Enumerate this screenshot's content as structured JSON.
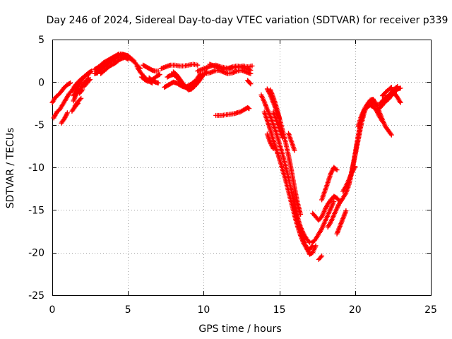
{
  "chart_data": {
    "type": "scatter",
    "title": "Day 246 of 2024, Sidereal Day-to-day VTEC variation (SDTVAR) for receiver p339",
    "xlabel": "GPS time / hours",
    "ylabel": "SDTVAR / TECUs",
    "xlim": [
      0,
      25
    ],
    "ylim": [
      -25,
      5
    ],
    "xticks": [
      "0",
      "5",
      "10",
      "15",
      "20",
      "25"
    ],
    "yticks": [
      "5",
      "0",
      "-5",
      "-10",
      "-15",
      "-20",
      "-25"
    ],
    "grid": true,
    "marker": "+",
    "series": [
      {
        "name": "arc-01",
        "color": "#ff0000",
        "x": [
          0.0,
          0.2,
          0.4,
          0.6,
          0.8,
          1.0,
          1.2
        ],
        "y": [
          -2.4,
          -1.8,
          -1.5,
          -1.1,
          -0.6,
          -0.3,
          -0.1
        ]
      },
      {
        "name": "arc-02",
        "color": "#ff0000",
        "x": [
          0.1,
          0.3,
          0.5,
          0.7,
          0.9,
          1.1,
          1.3,
          1.5,
          1.7,
          2.0,
          2.3,
          2.5
        ],
        "y": [
          -4.2,
          -3.5,
          -3.2,
          -2.6,
          -2.0,
          -1.4,
          -1.0,
          -0.4,
          0.0,
          0.5,
          0.9,
          1.1
        ]
      },
      {
        "name": "arc-03",
        "color": "#ff0000",
        "x": [
          0.6,
          0.8,
          1.0
        ],
        "y": [
          -4.8,
          -4.3,
          -3.6
        ]
      },
      {
        "name": "arc-04",
        "color": "#ff0000",
        "x": [
          1.4,
          1.6,
          1.8,
          2.0,
          2.2,
          2.4,
          2.6
        ],
        "y": [
          -1.6,
          -0.8,
          -0.2,
          0.4,
          0.8,
          1.1,
          1.3
        ]
      },
      {
        "name": "arc-05",
        "color": "#ff0000",
        "x": [
          1.4,
          1.6,
          1.8,
          2.0,
          2.2,
          2.4
        ],
        "y": [
          -2.2,
          -1.4,
          -0.9,
          -0.4,
          0.1,
          0.5
        ]
      },
      {
        "name": "arc-06",
        "color": "#ff0000",
        "x": [
          1.3,
          1.5,
          1.7
        ],
        "y": [
          -3.4,
          -2.9,
          -2.5
        ]
      },
      {
        "name": "arc-07",
        "color": "#ff0000",
        "x": [
          1.5,
          1.7,
          1.9
        ],
        "y": [
          -2.8,
          -2.3,
          -1.9
        ]
      },
      {
        "name": "arc-08",
        "color": "#ff0000",
        "x": [
          1.8,
          2.0
        ],
        "y": [
          -1.3,
          -0.9
        ]
      },
      {
        "name": "arc-09",
        "color": "#ff0000",
        "x": [
          2.1,
          2.3,
          2.5
        ],
        "y": [
          -0.5,
          -0.1,
          0.3
        ]
      },
      {
        "name": "arc-10",
        "color": "#ff0000",
        "x": [
          2.8,
          3.0,
          3.2,
          3.4,
          3.6,
          3.8,
          4.0,
          4.2,
          4.4,
          4.6,
          4.8,
          5.0,
          5.2,
          5.4,
          5.6,
          5.8
        ],
        "y": [
          1.0,
          1.1,
          1.5,
          2.0,
          2.3,
          2.6,
          2.8,
          3.0,
          3.1,
          3.2,
          3.1,
          2.9,
          2.7,
          2.4,
          2.0,
          1.6
        ]
      },
      {
        "name": "arc-11",
        "color": "#ff0000",
        "x": [
          2.8,
          3.0,
          3.2,
          3.4,
          3.6,
          3.8,
          4.0,
          4.2,
          4.4,
          4.6,
          4.8,
          5.0,
          5.2,
          5.4
        ],
        "y": [
          1.5,
          1.7,
          2.0,
          2.3,
          2.5,
          2.7,
          2.9,
          3.1,
          3.3,
          3.3,
          3.2,
          3.1,
          2.8,
          2.5
        ]
      },
      {
        "name": "arc-12",
        "color": "#ff0000",
        "x": [
          3.0,
          3.2,
          3.4,
          3.6,
          3.8,
          4.0,
          4.2
        ],
        "y": [
          1.3,
          1.5,
          1.8,
          2.1,
          2.4,
          2.6,
          2.8
        ]
      },
      {
        "name": "arc-13",
        "color": "#ff0000",
        "x": [
          3.2,
          3.4,
          3.6,
          3.8,
          4.0,
          4.2,
          4.4,
          4.6,
          4.8,
          5.0
        ],
        "y": [
          1.0,
          1.3,
          1.6,
          1.9,
          2.1,
          2.3,
          2.6,
          2.8,
          2.9,
          2.7
        ]
      },
      {
        "name": "arc-14",
        "color": "#ff0000",
        "x": [
          5.6,
          5.8,
          6.0,
          6.2,
          6.4,
          6.6
        ],
        "y": [
          1.8,
          1.2,
          0.8,
          0.4,
          0.1,
          -0.1
        ]
      },
      {
        "name": "arc-15",
        "color": "#ff0000",
        "x": [
          5.9,
          6.1,
          6.3,
          6.5,
          6.7,
          6.9,
          7.1
        ],
        "y": [
          0.6,
          0.3,
          0.1,
          0.2,
          0.4,
          0.7,
          0.9
        ]
      },
      {
        "name": "arc-16",
        "color": "#ff0000",
        "x": [
          6.0,
          6.2,
          6.4,
          6.6,
          6.8,
          7.0
        ],
        "y": [
          2.0,
          1.8,
          1.6,
          1.4,
          1.3,
          1.3
        ]
      },
      {
        "name": "arc-17",
        "color": "#ff0000",
        "x": [
          6.4,
          6.6,
          6.8,
          7.0
        ],
        "y": [
          0.5,
          0.2,
          0.0,
          -0.1
        ]
      },
      {
        "name": "arc-18",
        "color": "#ff0000",
        "x": [
          7.2,
          7.5,
          7.8,
          8.1,
          8.4,
          8.7,
          9.0,
          9.3,
          9.6
        ],
        "y": [
          1.6,
          1.8,
          2.0,
          2.0,
          1.9,
          1.9,
          2.0,
          2.1,
          2.0
        ]
      },
      {
        "name": "arc-19",
        "color": "#ff0000",
        "x": [
          7.4,
          7.6,
          7.8,
          8.0,
          8.2,
          8.4,
          8.6,
          8.8,
          9.0,
          9.2,
          9.4
        ],
        "y": [
          -0.6,
          -0.4,
          -0.2,
          0.0,
          -0.1,
          -0.3,
          -0.5,
          -0.6,
          -0.4,
          -0.2,
          0.1
        ]
      },
      {
        "name": "arc-20",
        "color": "#ff0000",
        "x": [
          8.0,
          8.2,
          8.4,
          8.6,
          8.8,
          9.0,
          9.2,
          9.4,
          9.6,
          9.8,
          10.0,
          10.2
        ],
        "y": [
          1.2,
          0.9,
          0.4,
          -0.1,
          -0.6,
          -0.9,
          -0.8,
          -0.5,
          -0.1,
          0.4,
          0.9,
          1.3
        ]
      },
      {
        "name": "arc-21",
        "color": "#ff0000",
        "x": [
          7.6,
          7.8,
          8.0,
          8.2,
          8.4,
          8.6,
          8.8,
          9.0,
          9.2,
          9.4,
          9.6,
          9.8
        ],
        "y": [
          0.6,
          0.8,
          0.9,
          0.6,
          0.2,
          -0.2,
          -0.5,
          -0.7,
          -0.5,
          -0.1,
          0.5,
          1.0
        ]
      },
      {
        "name": "arc-22",
        "color": "#ff0000",
        "x": [
          9.6,
          9.9,
          10.2,
          10.5,
          10.8,
          11.1,
          11.4,
          11.7,
          12.0,
          12.3,
          12.6,
          12.9,
          13.2
        ],
        "y": [
          1.3,
          1.5,
          1.7,
          1.9,
          2.0,
          1.8,
          1.7,
          1.6,
          1.7,
          1.8,
          1.9,
          1.8,
          1.9
        ]
      },
      {
        "name": "arc-23",
        "color": "#ff0000",
        "x": [
          9.8,
          10.1,
          10.4,
          10.7,
          11.0,
          11.3,
          11.6,
          11.9,
          12.2,
          12.5,
          12.8,
          13.1
        ],
        "y": [
          0.9,
          1.0,
          1.1,
          1.3,
          1.4,
          1.2,
          1.0,
          1.1,
          1.3,
          1.4,
          1.2,
          1.0
        ]
      },
      {
        "name": "arc-24",
        "color": "#ff0000",
        "x": [
          10.4,
          10.7,
          11.0,
          11.3,
          11.6,
          11.9,
          12.2,
          12.5,
          12.8,
          13.1
        ],
        "y": [
          2.1,
          1.9,
          1.7,
          1.5,
          1.6,
          1.8,
          1.9,
          1.8,
          1.6,
          1.4
        ]
      },
      {
        "name": "arc-25",
        "color": "#ff0000",
        "x": [
          12.9,
          13.0,
          13.1
        ],
        "y": [
          0.2,
          0.0,
          -0.2
        ]
      },
      {
        "name": "arc-26",
        "color": "#ff0000",
        "x": [
          10.8,
          11.2,
          11.6,
          12.0,
          12.4,
          12.7,
          12.9,
          13.0
        ],
        "y": [
          -3.9,
          -3.9,
          -3.8,
          -3.7,
          -3.5,
          -3.2,
          -3.0,
          -3.1
        ]
      },
      {
        "name": "arc-27",
        "color": "#ff0000",
        "x": [
          13.8,
          14.0,
          14.2,
          14.4,
          14.6,
          14.8,
          15.0,
          15.2,
          15.4,
          15.6,
          15.8,
          16.0,
          16.2,
          16.4,
          16.6,
          16.8,
          17.0,
          17.2,
          17.4
        ],
        "y": [
          -1.5,
          -2.3,
          -3.2,
          -4.0,
          -5.0,
          -6.0,
          -7.2,
          -8.4,
          -9.8,
          -11.2,
          -12.8,
          -14.3,
          -15.8,
          -17.2,
          -18.5,
          -19.5,
          -20.2,
          -20.0,
          -19.2
        ]
      },
      {
        "name": "arc-28",
        "color": "#ff0000",
        "x": [
          14.0,
          14.2,
          14.4,
          14.6,
          14.8,
          15.0,
          15.2,
          15.4,
          15.6,
          15.8,
          16.0,
          16.2,
          16.4,
          16.6,
          16.8,
          17.0,
          17.2
        ],
        "y": [
          -3.5,
          -4.5,
          -5.6,
          -6.8,
          -7.9,
          -9.0,
          -10.2,
          -11.4,
          -12.8,
          -14.2,
          -15.6,
          -16.9,
          -18.0,
          -18.9,
          -19.5,
          -19.6,
          -19.2
        ]
      },
      {
        "name": "arc-29",
        "color": "#ff0000",
        "x": [
          14.2,
          14.4,
          14.6,
          14.8,
          15.0
        ],
        "y": [
          -0.8,
          -1.5,
          -2.4,
          -3.3,
          -4.3
        ]
      },
      {
        "name": "arc-30",
        "color": "#ff0000",
        "x": [
          14.4,
          14.6,
          14.8,
          15.0,
          15.2,
          15.4,
          15.6,
          15.8,
          16.0,
          16.2,
          16.4
        ],
        "y": [
          -0.9,
          -1.8,
          -2.9,
          -4.2,
          -5.6,
          -7.0,
          -8.6,
          -10.4,
          -12.4,
          -14.2,
          -15.5
        ]
      },
      {
        "name": "arc-31",
        "color": "#ff0000",
        "x": [
          14.2,
          14.4,
          14.6
        ],
        "y": [
          -6.1,
          -7.1,
          -7.8
        ]
      },
      {
        "name": "arc-32",
        "color": "#ff0000",
        "x": [
          14.6,
          14.8,
          15.0,
          15.2
        ],
        "y": [
          -3.5,
          -4.5,
          -5.5,
          -6.5
        ]
      },
      {
        "name": "arc-33",
        "color": "#ff0000",
        "x": [
          15.6,
          15.8,
          16.0
        ],
        "y": [
          -6.0,
          -7.0,
          -8.0
        ]
      },
      {
        "name": "arc-34",
        "color": "#ff0000",
        "x": [
          16.0,
          16.2,
          16.4,
          16.6,
          16.8,
          17.0,
          17.2,
          17.4,
          17.6,
          17.8,
          18.0,
          18.2,
          18.4,
          18.6
        ],
        "y": [
          -15.0,
          -16.0,
          -17.0,
          -17.8,
          -18.4,
          -18.8,
          -18.8,
          -18.4,
          -17.8,
          -17.2,
          -16.4,
          -15.6,
          -14.8,
          -14.0
        ]
      },
      {
        "name": "arc-35",
        "color": "#ff0000",
        "x": [
          17.2,
          17.4,
          17.6,
          17.8,
          18.0,
          18.2,
          18.4,
          18.6,
          18.8,
          19.0
        ],
        "y": [
          -15.4,
          -15.8,
          -16.2,
          -15.8,
          -15.0,
          -14.3,
          -13.8,
          -13.4,
          -13.6,
          -14.0
        ]
      },
      {
        "name": "arc-36",
        "color": "#ff0000",
        "x": [
          17.6,
          17.8
        ],
        "y": [
          -20.8,
          -20.4
        ]
      },
      {
        "name": "arc-37",
        "color": "#ff0000",
        "x": [
          17.8,
          18.0,
          18.2,
          18.4,
          18.6,
          18.8
        ],
        "y": [
          -13.8,
          -12.8,
          -11.8,
          -10.7,
          -10.0,
          -10.3
        ]
      },
      {
        "name": "arc-38",
        "color": "#ff0000",
        "x": [
          18.2,
          18.4,
          18.6,
          18.8,
          19.0,
          19.2,
          19.4,
          19.6,
          19.8,
          20.0,
          20.2,
          20.4,
          20.6,
          20.8,
          21.0,
          21.2,
          21.4,
          21.6,
          21.8,
          22.0,
          22.2,
          22.4,
          22.6,
          22.8
        ],
        "y": [
          -17.0,
          -16.4,
          -15.6,
          -14.8,
          -14.1,
          -13.6,
          -13.0,
          -12.0,
          -10.4,
          -8.4,
          -6.3,
          -4.5,
          -3.2,
          -2.6,
          -2.4,
          -2.5,
          -2.6,
          -2.6,
          -2.2,
          -1.8,
          -1.6,
          -1.2,
          -0.8,
          -0.5
        ]
      },
      {
        "name": "arc-39",
        "color": "#ff0000",
        "x": [
          18.8,
          19.0,
          19.2,
          19.4
        ],
        "y": [
          -17.8,
          -16.9,
          -16.0,
          -15.1
        ]
      },
      {
        "name": "arc-40",
        "color": "#ff0000",
        "x": [
          19.2,
          19.4,
          19.6,
          19.8,
          20.0
        ],
        "y": [
          -12.8,
          -12.2,
          -11.4,
          -10.6,
          -9.9
        ]
      },
      {
        "name": "arc-41",
        "color": "#ff0000",
        "x": [
          19.6,
          19.8,
          20.0,
          20.2,
          20.4,
          20.6,
          20.8,
          21.0,
          21.2,
          21.4,
          21.6,
          21.8,
          22.0,
          22.2,
          22.4
        ],
        "y": [
          -11.8,
          -10.3,
          -8.6,
          -6.8,
          -5.0,
          -3.6,
          -2.6,
          -2.1,
          -2.0,
          -2.6,
          -3.5,
          -4.4,
          -5.2,
          -5.7,
          -6.2
        ]
      },
      {
        "name": "arc-42",
        "color": "#ff0000",
        "x": [
          20.2,
          20.4,
          20.6,
          20.8,
          21.0,
          21.2,
          21.4,
          21.6,
          21.8
        ],
        "y": [
          -5.2,
          -4.0,
          -3.3,
          -2.9,
          -2.7,
          -2.9,
          -3.3,
          -4.0,
          -4.6
        ]
      },
      {
        "name": "arc-43",
        "color": "#ff0000",
        "x": [
          21.6,
          21.8,
          22.0,
          22.2,
          22.4,
          22.6,
          22.8,
          23.0
        ],
        "y": [
          -3.1,
          -2.7,
          -2.3,
          -2.0,
          -1.6,
          -1.2,
          -0.8,
          -0.7
        ]
      },
      {
        "name": "arc-44",
        "color": "#ff0000",
        "x": [
          21.8,
          22.0,
          22.2,
          22.4
        ],
        "y": [
          -1.6,
          -1.2,
          -0.9,
          -0.6
        ]
      },
      {
        "name": "arc-45",
        "color": "#ff0000",
        "x": [
          22.4,
          22.6,
          22.8,
          23.0
        ],
        "y": [
          -0.9,
          -1.3,
          -1.8,
          -2.4
        ]
      }
    ]
  }
}
